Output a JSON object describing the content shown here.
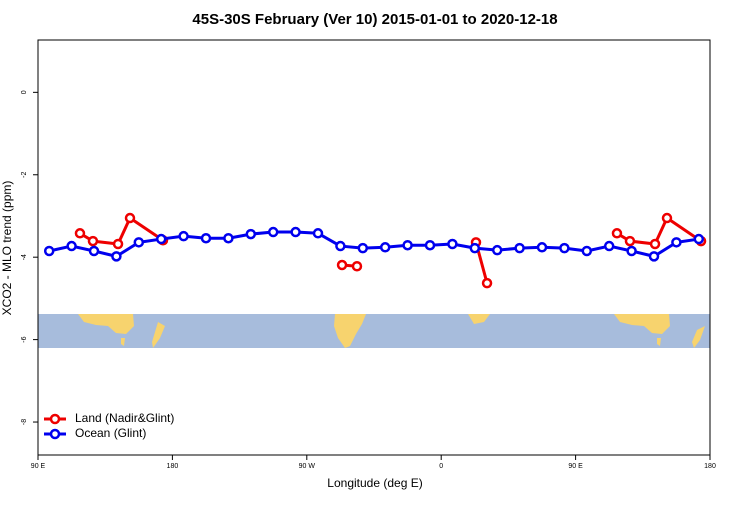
{
  "chart_data": {
    "type": "line",
    "title": "45S-30S February (Ver 10)   2015-01-01 to 2020-12-18",
    "xlabel": "Longitude (deg E)",
    "ylabel": "XCO2 - MLO trend (ppm)",
    "xlim": [
      90,
      540
    ],
    "ylim": [
      -8.8,
      1.27
    ],
    "xticks": [
      {
        "value": 90,
        "label": "90 E"
      },
      {
        "value": 180,
        "label": "180"
      },
      {
        "value": 270,
        "label": "90 W"
      },
      {
        "value": 360,
        "label": "0"
      },
      {
        "value": 450,
        "label": "90 E"
      },
      {
        "value": 540,
        "label": "180"
      }
    ],
    "yticks": [
      -8,
      -6,
      -4,
      -2,
      0
    ],
    "legend": "bottom-left",
    "series": [
      {
        "name": "Land (Nadir&Glint)",
        "color": "#ee0000",
        "x": [
          118.1,
          126.8,
          143.6,
          151.6,
          173.7,
          null,
          293.6,
          303.6,
          null,
          383.3,
          390.7,
          null,
          477.7,
          486.4,
          503.2,
          511.2,
          534
        ],
        "values": [
          -3.42,
          -3.61,
          -3.68,
          -3.05,
          -3.59,
          null,
          -4.19,
          -4.22,
          null,
          -3.64,
          -4.63,
          null,
          -3.42,
          -3.61,
          -3.68,
          -3.05,
          -3.61
        ]
      },
      {
        "name": "Ocean (Glint)",
        "color": "#0000ee",
        "x": [
          97.5,
          112.5,
          127.5,
          142.5,
          157.5,
          172.5,
          187.5,
          202.5,
          217.5,
          232.5,
          247.5,
          262.5,
          277.5,
          292.5,
          307.5,
          322.5,
          337.5,
          352.5,
          367.5,
          382.5,
          397.5,
          412.5,
          427.5,
          442.5,
          457.5,
          472.5,
          487.5,
          502.5,
          517.5,
          532.5
        ],
        "values": [
          -3.85,
          -3.73,
          -3.85,
          -3.98,
          -3.64,
          -3.56,
          -3.49,
          -3.54,
          -3.54,
          -3.44,
          -3.39,
          -3.39,
          -3.42,
          -3.73,
          -3.78,
          -3.76,
          -3.71,
          -3.71,
          -3.68,
          -3.78,
          -3.83,
          -3.78,
          -3.76,
          -3.78,
          -3.85,
          -3.73,
          -3.85,
          -3.98,
          -3.64,
          -3.56
        ]
      }
    ]
  }
}
